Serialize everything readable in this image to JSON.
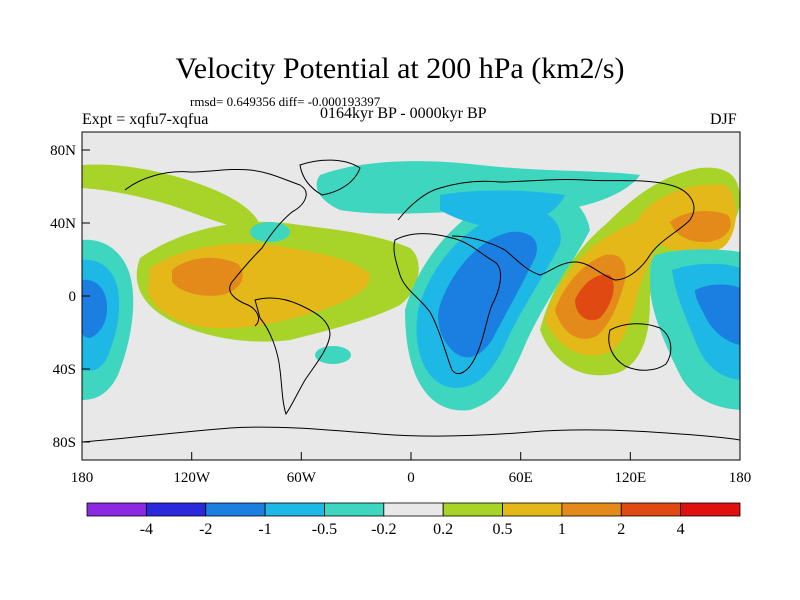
{
  "title": "Velocity Potential at 200 hPa (km2/s)",
  "stats": "rmsd= 0.649356 diff= -0.000193397",
  "expt": "Expt = xqfu7-xqfua",
  "period": "0164kyr BP - 0000kyr BP",
  "season": "DJF",
  "yaxis_labels": [
    "80N",
    "40N",
    "0",
    "40S",
    "80S"
  ],
  "xaxis_labels": [
    "180",
    "120W",
    "60W",
    "0",
    "60E",
    "120E",
    "180"
  ],
  "colorbar": {
    "labels": [
      "-4",
      "-2",
      "-1",
      "-0.5",
      "-0.2",
      "0.2",
      "0.5",
      "1",
      "2",
      "4"
    ],
    "colors": [
      "#8a2be2",
      "#2a2adc",
      "#1a7fe0",
      "#1eb8e6",
      "#3fd6c0",
      "#e8e8e8",
      "#a8d42a",
      "#e4b818",
      "#e48a1a",
      "#e04a12",
      "#e01010"
    ]
  },
  "field_colors": {
    "neutral": "#e8e8e8",
    "pos_weak": "#a8d42a",
    "pos_mid": "#e4b818",
    "pos_strong": "#e48a1a",
    "pos_max": "#e04a12",
    "neg_weak": "#3fd6c0",
    "neg_mid": "#1eb8e6",
    "neg_strong": "#1a7fe0",
    "coast": "#000000"
  }
}
